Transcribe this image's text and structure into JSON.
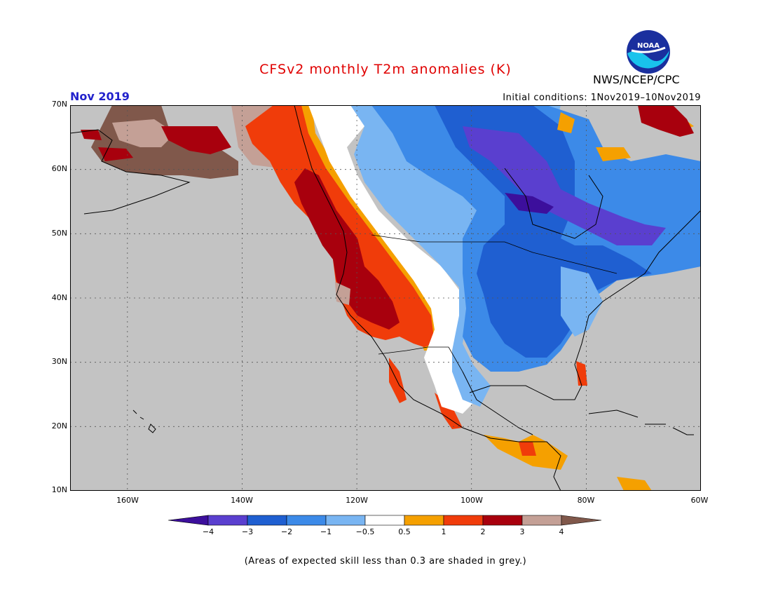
{
  "header": {
    "title": "CFSv2 monthly T2m anomalies (K)",
    "month": "Nov 2019",
    "initial_conditions": "Initial conditions: 1Nov2019–10Nov2019",
    "agency": "NWS/NCEP/CPC",
    "logo_text": "NOAA"
  },
  "axes": {
    "lat_labels": [
      "70N",
      "60N",
      "50N",
      "40N",
      "30N",
      "20N",
      "10N"
    ],
    "lon_labels": [
      "160W",
      "140W",
      "120W",
      "100W",
      "80W",
      "60W"
    ]
  },
  "colorbar": {
    "ticks": [
      "−4",
      "−3",
      "−2",
      "−1",
      "−0.5",
      "0.5",
      "1",
      "2",
      "3",
      "4"
    ],
    "colors": [
      "#3c0f9c",
      "#5a3fcf",
      "#1f5fd1",
      "#3c8ae8",
      "#79b5f2",
      "#ffffff",
      "#f5a000",
      "#f03c0a",
      "#a8000d",
      "#c4a096",
      "#80584b"
    ]
  },
  "colors": {
    "grey": "#c3c3c3",
    "title": "#e00000",
    "month": "#2222cc"
  },
  "note": "(Areas of expected skill less than 0.3 are shaded in grey.)"
}
